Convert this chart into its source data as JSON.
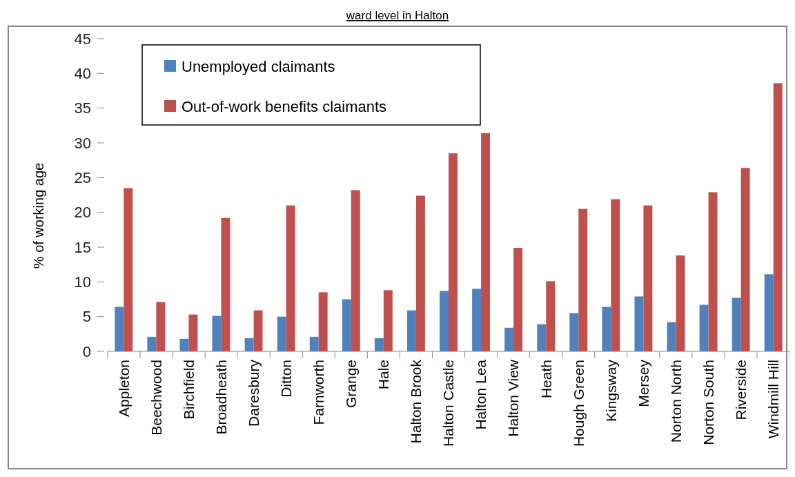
{
  "chart_data": {
    "type": "bar",
    "title": "ward level in Halton",
    "ylabel": "% of working age",
    "categories": [
      "Appleton",
      "Beechwood",
      "Birchfield",
      "Broadheath",
      "Daresbury",
      "Ditton",
      "Farnworth",
      "Grange",
      "Hale",
      "Halton Brook",
      "Halton Castle",
      "Halton Lea",
      "Halton View",
      "Heath",
      "Hough Green",
      "Kingsway",
      "Mersey",
      "Norton North",
      "Norton South",
      "Riverside",
      "Windmill Hill"
    ],
    "series": [
      {
        "name": "Unemployed claimants",
        "color": "#4f81bd",
        "values": [
          6.4,
          2.1,
          1.8,
          5.1,
          1.9,
          5.0,
          2.1,
          7.5,
          1.9,
          5.9,
          8.7,
          9.0,
          3.4,
          3.9,
          5.5,
          6.4,
          7.9,
          4.2,
          6.7,
          7.7,
          11.1
        ]
      },
      {
        "name": "Out-of-work benefits claimants",
        "color": "#c0504d",
        "values": [
          23.5,
          7.1,
          5.3,
          19.2,
          5.9,
          21.0,
          8.5,
          23.2,
          8.8,
          22.4,
          28.5,
          31.4,
          14.9,
          10.1,
          20.5,
          21.9,
          21.0,
          13.8,
          22.9,
          26.4,
          38.6
        ]
      }
    ],
    "ylim": [
      0,
      45
    ],
    "yticks": [
      0,
      5,
      10,
      15,
      20,
      25,
      30,
      35,
      40,
      45
    ],
    "grid": false,
    "legend": "top left"
  }
}
